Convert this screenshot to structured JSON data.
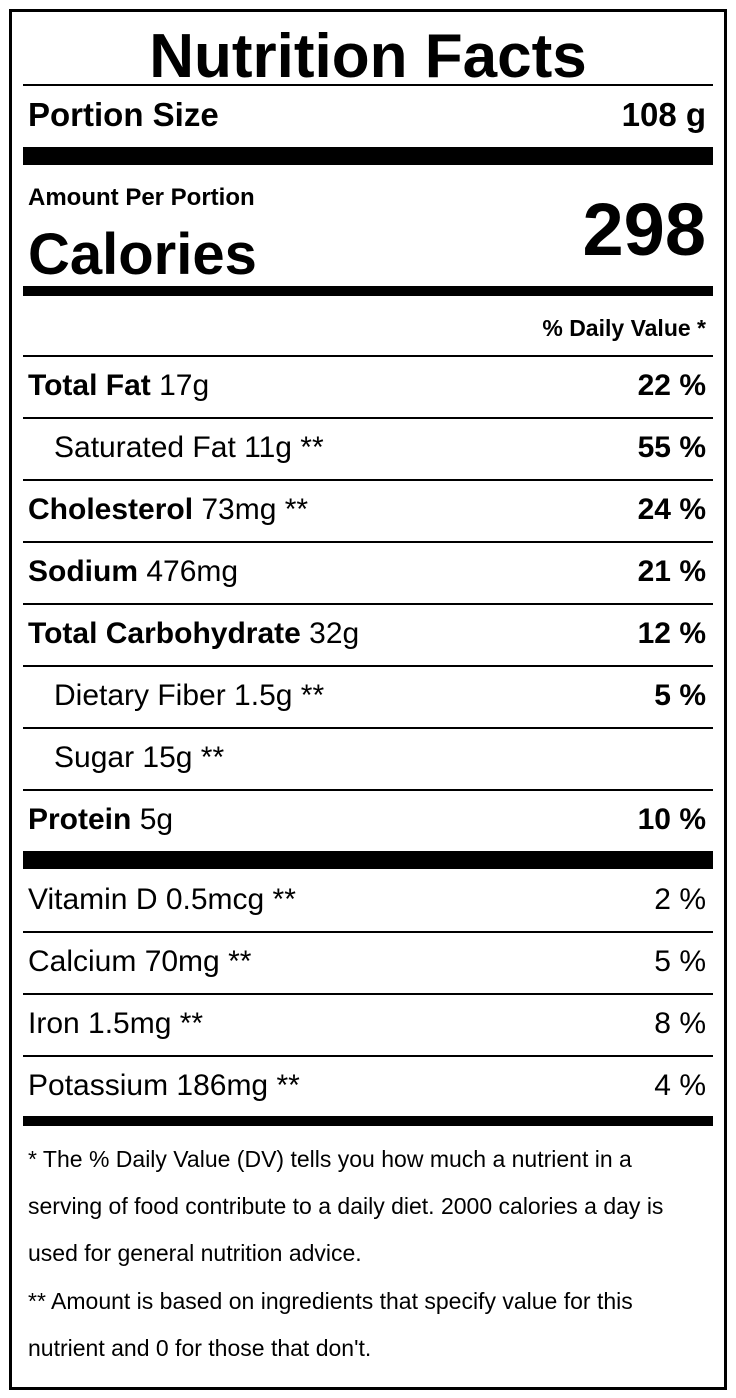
{
  "title": "Nutrition Facts",
  "portion": {
    "label": "Portion Size",
    "value": "108 g"
  },
  "amount_per": "Amount Per Portion",
  "calories": {
    "label": "Calories",
    "value": "298"
  },
  "dv_header": "% Daily Value *",
  "nutrients": [
    {
      "name": "Total Fat",
      "amount": " 17g",
      "dv": "22 %"
    },
    {
      "name": "Saturated Fat 11g **",
      "dv": "55 %"
    },
    {
      "name": "Cholesterol",
      "amount": " 73mg **",
      "dv": "24 %"
    },
    {
      "name": "Sodium",
      "amount": " 476mg",
      "dv": "21 %"
    },
    {
      "name": "Total Carbohydrate",
      "amount": " 32g",
      "dv": "12 %"
    },
    {
      "name": "Dietary Fiber 1.5g **",
      "dv": "5 %"
    },
    {
      "name": "Sugar 15g **",
      "dv": ""
    },
    {
      "name": "Protein",
      "amount": " 5g",
      "dv": "10 %"
    }
  ],
  "vitamins": [
    {
      "name": "Vitamin D 0.5mcg **",
      "dv": "2 %"
    },
    {
      "name": "Calcium 70mg **",
      "dv": "5 %"
    },
    {
      "name": "Iron 1.5mg **",
      "dv": "8 %"
    },
    {
      "name": "Potassium 186mg **",
      "dv": "4 %"
    }
  ],
  "footnotes": [
    "* The % Daily Value (DV) tells you how much a nutrient in a serving of food contribute to a daily diet. 2000 calories a day is used for general nutrition advice.",
    "** Amount is based on ingredients that specify value for this nutrient and 0 for those that don't."
  ]
}
